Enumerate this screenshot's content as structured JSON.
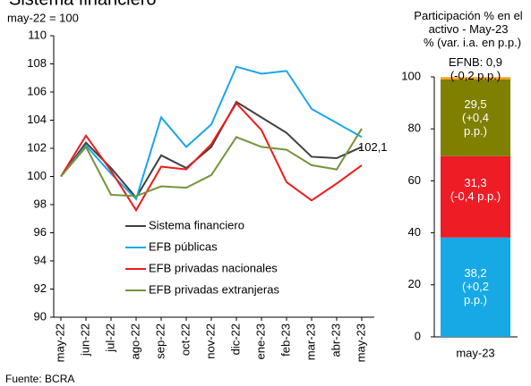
{
  "source": "Fuente: BCRA",
  "chart_data": [
    {
      "type": "line",
      "title": "Sistema financiero",
      "subtitle": "may-22 = 100",
      "categories": [
        "may-22",
        "jun-22",
        "jul-22",
        "ago-22",
        "sep-22",
        "oct-22",
        "nov-22",
        "dic-22",
        "ene-23",
        "feb-23",
        "mar-23",
        "abr-23",
        "may-23"
      ],
      "ylim": [
        90,
        110
      ],
      "yticks": [
        90,
        92,
        94,
        96,
        98,
        100,
        102,
        104,
        106,
        108,
        110
      ],
      "grid": false,
      "series": [
        {
          "name": "Sistema financiero",
          "color": "#404040",
          "values": [
            100,
            102.4,
            100.6,
            98.5,
            101.5,
            100.6,
            102.1,
            105.3,
            104.2,
            103.1,
            101.4,
            101.3,
            102.1
          ],
          "value_labels": [
            null,
            null,
            null,
            null,
            null,
            null,
            null,
            null,
            null,
            null,
            null,
            null,
            "102,1"
          ]
        },
        {
          "name": "EFB públicas",
          "color": "#1aa7e8",
          "values": [
            100,
            102.2,
            100.2,
            98.4,
            104.2,
            102.1,
            103.7,
            107.8,
            107.3,
            107.5,
            104.8,
            103.8,
            102.8
          ]
        },
        {
          "name": "EFB privadas nacionales",
          "color": "#ee1c1c",
          "values": [
            100,
            102.9,
            100.4,
            97.6,
            100.7,
            100.5,
            102.3,
            105.2,
            103.3,
            99.6,
            98.3,
            99.5,
            100.8
          ]
        },
        {
          "name": "EFB privadas extranjeras",
          "color": "#77933c",
          "values": [
            100,
            102.1,
            98.7,
            98.6,
            99.3,
            99.2,
            100.1,
            102.8,
            102.1,
            101.9,
            100.8,
            100.5,
            103.4
          ]
        }
      ]
    },
    {
      "type": "stacked_bar",
      "title": "Participación % en el activo - May-23",
      "ylabel": "%",
      "subtitle": "(var. i.a. en p.p.)",
      "categories": [
        "may-23"
      ],
      "ylim": [
        0,
        100
      ],
      "yticks": [
        0,
        20,
        40,
        60,
        80,
        100
      ],
      "series": [
        {
          "color": "#16a9e6",
          "values": [
            38.2
          ],
          "value_labels": [
            "38,2"
          ],
          "change_labels": [
            "(+0,2 p.p.)"
          ]
        },
        {
          "color": "#ee1c25",
          "values": [
            31.3
          ],
          "value_labels": [
            "31,3"
          ],
          "change_labels": [
            "(-0,4 p.p.)"
          ]
        },
        {
          "color": "#7f7f00",
          "values": [
            29.5
          ],
          "value_labels": [
            "29,5"
          ],
          "change_labels": [
            "(+0,4 p.p.)"
          ]
        },
        {
          "color": "#f4a21d",
          "values": [
            0.9
          ],
          "value_labels": [
            "EFNB: 0,9"
          ],
          "change_labels": [
            "(-0,2 p.p.)"
          ]
        }
      ]
    }
  ]
}
